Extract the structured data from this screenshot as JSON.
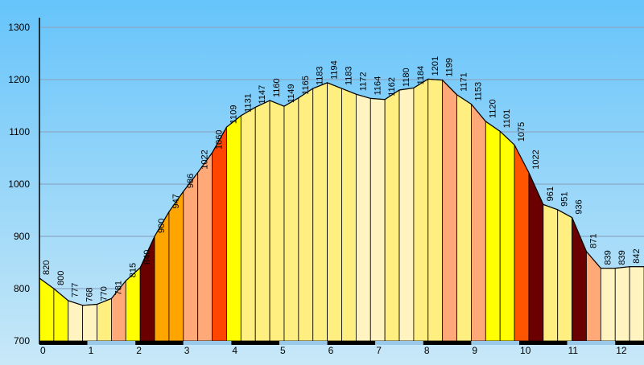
{
  "chart_data": {
    "type": "area",
    "title": "",
    "xlabel": "",
    "ylabel": "",
    "xlim": [
      0,
      12.6
    ],
    "ylim": [
      700,
      1300
    ],
    "y_ticks": [
      700,
      800,
      900,
      1000,
      1100,
      1200,
      1300
    ],
    "x_ticks": [
      0,
      1,
      2,
      3,
      4,
      5,
      6,
      7,
      8,
      9,
      10,
      11,
      12
    ],
    "grid": true,
    "legend": "none",
    "points": [
      {
        "x": 0.0,
        "y": 820,
        "color": "#ffff00"
      },
      {
        "x": 0.3,
        "y": 800,
        "color": "#ffff00"
      },
      {
        "x": 0.6,
        "y": 777,
        "color": "#fff3c0"
      },
      {
        "x": 0.9,
        "y": 768,
        "color": "#fff3c0"
      },
      {
        "x": 1.2,
        "y": 770,
        "color": "#ffee80"
      },
      {
        "x": 1.5,
        "y": 781,
        "color": "#ffa878"
      },
      {
        "x": 1.8,
        "y": 815,
        "color": "#ffff00"
      },
      {
        "x": 2.1,
        "y": 840,
        "color": "#6b0000"
      },
      {
        "x": 2.4,
        "y": 900,
        "color": "#ffa500"
      },
      {
        "x": 2.7,
        "y": 947,
        "color": "#ffa500"
      },
      {
        "x": 3.0,
        "y": 986,
        "color": "#ffa878"
      },
      {
        "x": 3.3,
        "y": 1022,
        "color": "#ffa878"
      },
      {
        "x": 3.6,
        "y": 1060,
        "color": "#ff4500"
      },
      {
        "x": 3.9,
        "y": 1109,
        "color": "#ffff00"
      },
      {
        "x": 4.2,
        "y": 1131,
        "color": "#ffee80"
      },
      {
        "x": 4.5,
        "y": 1147,
        "color": "#ffee80"
      },
      {
        "x": 4.8,
        "y": 1160,
        "color": "#ffee80"
      },
      {
        "x": 5.1,
        "y": 1149,
        "color": "#ffee80"
      },
      {
        "x": 5.4,
        "y": 1165,
        "color": "#ffee80"
      },
      {
        "x": 5.7,
        "y": 1183,
        "color": "#ffee80"
      },
      {
        "x": 6.0,
        "y": 1194,
        "color": "#ffee80"
      },
      {
        "x": 6.3,
        "y": 1183,
        "color": "#ffee80"
      },
      {
        "x": 6.6,
        "y": 1172,
        "color": "#fff3c0"
      },
      {
        "x": 6.9,
        "y": 1164,
        "color": "#fff3c0"
      },
      {
        "x": 7.2,
        "y": 1162,
        "color": "#ffee80"
      },
      {
        "x": 7.5,
        "y": 1180,
        "color": "#fff3c0"
      },
      {
        "x": 7.8,
        "y": 1184,
        "color": "#ffee80"
      },
      {
        "x": 8.1,
        "y": 1201,
        "color": "#ffee80"
      },
      {
        "x": 8.4,
        "y": 1199,
        "color": "#ffa878"
      },
      {
        "x": 8.7,
        "y": 1171,
        "color": "#ffee80"
      },
      {
        "x": 9.0,
        "y": 1153,
        "color": "#ffa878"
      },
      {
        "x": 9.3,
        "y": 1120,
        "color": "#ffff00"
      },
      {
        "x": 9.6,
        "y": 1101,
        "color": "#ffff00"
      },
      {
        "x": 9.9,
        "y": 1075,
        "color": "#ff5500"
      },
      {
        "x": 10.2,
        "y": 1022,
        "color": "#6b0000"
      },
      {
        "x": 10.5,
        "y": 961,
        "color": "#ffee80"
      },
      {
        "x": 10.8,
        "y": 951,
        "color": "#ffee80"
      },
      {
        "x": 11.1,
        "y": 936,
        "color": "#6b0000"
      },
      {
        "x": 11.4,
        "y": 871,
        "color": "#ffa878"
      },
      {
        "x": 11.7,
        "y": 839,
        "color": "#fff3c0"
      },
      {
        "x": 12.0,
        "y": 839,
        "color": "#fff3c0"
      },
      {
        "x": 12.3,
        "y": 842,
        "color": "#fff3c0"
      }
    ]
  },
  "colors": {
    "background": "#6ec6f5",
    "grid": "#8aa8c8",
    "axis": "#000000",
    "stripe": "#000000"
  }
}
